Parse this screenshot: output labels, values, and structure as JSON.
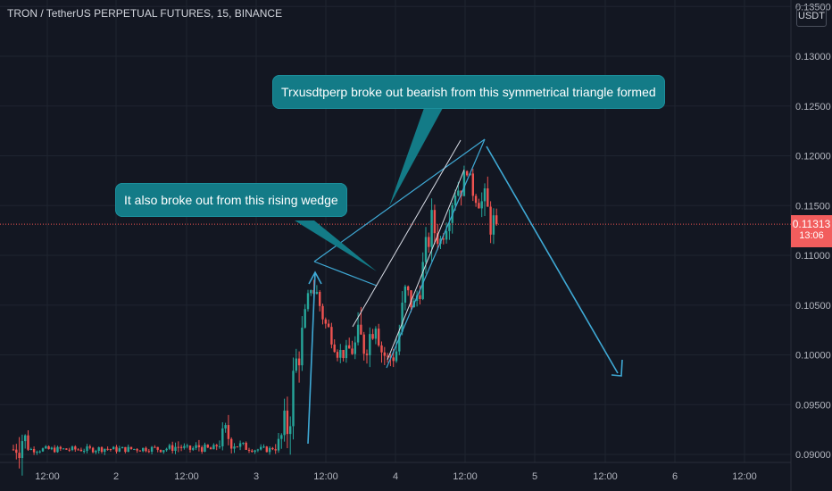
{
  "header": {
    "title": "TRON / TetherUS PERPETUAL FUTURES, 15, BINANCE"
  },
  "annotations": {
    "triangle_note": "Trxusdtperp broke out bearish from this symmetrical triangle formed",
    "wedge_note": "It also broke out from this rising wedge"
  },
  "price_scale": {
    "unit": "USDT",
    "current_price": "0.11313",
    "countdown": "13:06"
  },
  "colors": {
    "background": "#131722",
    "up": "#26a69a",
    "down": "#ef5350",
    "annotation_line": "#3fa9d5",
    "callout": "#137b87",
    "price_tag": "#f25d5d"
  },
  "chart_data": {
    "type": "candlestick",
    "ylim": [
      0.0898,
      0.1358
    ],
    "y_ticks": [
      {
        "value": 0.135,
        "label": "0.13500"
      },
      {
        "value": 0.13,
        "label": "0.13000"
      },
      {
        "value": 0.125,
        "label": "0.12500"
      },
      {
        "value": 0.12,
        "label": "0.12000"
      },
      {
        "value": 0.115,
        "label": "0.11500"
      },
      {
        "value": 0.11,
        "label": "0.11000"
      },
      {
        "value": 0.105,
        "label": "0.10500"
      },
      {
        "value": 0.1,
        "label": "0.10000"
      },
      {
        "value": 0.095,
        "label": "0.09500"
      },
      {
        "value": 0.09,
        "label": "0.09000"
      }
    ],
    "x_ticks": [
      "12:00",
      "2",
      "12:00",
      "3",
      "12:00",
      "4",
      "12:00",
      "5",
      "12:00",
      "6",
      "12:00"
    ],
    "last_price": 0.11313,
    "segments": [
      [
        0,
        0.0915,
        0.0905
      ],
      [
        3,
        0.0945,
        0.0918
      ],
      [
        6,
        0.0905,
        0.0905
      ],
      [
        26,
        0.0905,
        0.0905
      ],
      [
        31,
        0.091,
        0.0906
      ],
      [
        34,
        0.0905,
        0.0905
      ],
      [
        48,
        0.0908,
        0.0906
      ],
      [
        50,
        0.0905,
        0.0905
      ],
      [
        56,
        0.0915,
        0.0908
      ],
      [
        60,
        0.0905,
        0.0905
      ],
      [
        63,
        0.0915,
        0.0908
      ],
      [
        67,
        0.0905,
        0.0905
      ],
      [
        68,
        0.091,
        0.0906
      ],
      [
        72,
        0.0935,
        0.092
      ],
      [
        77,
        0.0915,
        0.0908
      ],
      [
        82,
        0.0905,
        0.0905
      ],
      [
        87,
        0.0905,
        0.0905
      ],
      [
        90,
        0.092,
        0.091
      ],
      [
        93,
        0.096,
        0.093
      ],
      [
        96,
        0.102,
        0.099
      ],
      [
        98,
        0.1035,
        0.102
      ],
      [
        101,
        0.108,
        0.107
      ],
      [
        103,
        0.1075,
        0.106
      ],
      [
        106,
        0.104,
        0.103
      ],
      [
        108,
        0.103,
        0.102
      ],
      [
        110,
        0.1015,
        0.1005
      ],
      [
        112,
        0.1005,
        0.1
      ],
      [
        114,
        0.1015,
        0.1005
      ],
      [
        118,
        0.104,
        0.101
      ],
      [
        121,
        0.1035,
        0.102
      ],
      [
        123,
        0.106,
        0.104
      ],
      [
        125,
        0.102,
        0.1005
      ],
      [
        127,
        0.1005,
        0.0995
      ],
      [
        130,
        0.1025,
        0.1005
      ],
      [
        133,
        0.108,
        0.106
      ],
      [
        136,
        0.106,
        0.105
      ],
      [
        138,
        0.1085,
        0.107
      ],
      [
        140,
        0.112,
        0.1105
      ],
      [
        142,
        0.115,
        0.113
      ],
      [
        145,
        0.1125,
        0.1115
      ],
      [
        147,
        0.116,
        0.114
      ],
      [
        150,
        0.1175,
        0.1165
      ],
      [
        152,
        0.1185,
        0.117
      ],
      [
        154,
        0.119,
        0.1185
      ],
      [
        156,
        0.1175,
        0.1165
      ],
      [
        158,
        0.1165,
        0.1155
      ],
      [
        160,
        0.117,
        0.115
      ],
      [
        162,
        0.1155,
        0.1135
      ],
      [
        164,
        0.114,
        0.1131
      ]
    ]
  }
}
